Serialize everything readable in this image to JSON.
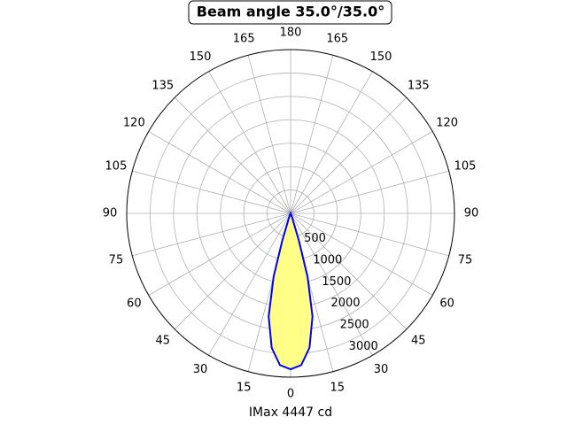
{
  "chart_data": {
    "type": "polar",
    "title": "Beam angle 35.0°/35.0°",
    "xlabel": "IMax 4447 cd",
    "series": [
      {
        "color": "#0000ee",
        "fill": "#ffff88",
        "theta": [
          -30,
          -20,
          -17,
          -15,
          -12,
          -8,
          -4,
          0,
          4,
          8,
          12,
          15,
          17,
          20,
          30
        ],
        "values": [
          0,
          100,
          600,
          1400,
          2250,
          2900,
          3250,
          3330,
          3250,
          2900,
          2250,
          1400,
          600,
          100,
          0
        ]
      }
    ],
    "rlim": [
      0,
      3500
    ],
    "rticks": [
      500,
      1000,
      1500,
      2000,
      2500,
      3000
    ],
    "thetaticks": [
      0,
      15,
      30,
      45,
      60,
      75,
      90,
      105,
      120,
      135,
      150,
      165,
      180,
      {
        "value": 195,
        "label": "165"
      },
      {
        "value": 210,
        "label": "150"
      },
      {
        "value": 225,
        "label": "135"
      },
      {
        "value": 240,
        "label": "120"
      },
      {
        "value": 255,
        "label": "105"
      },
      {
        "value": 270,
        "label": "90"
      },
      {
        "value": 285,
        "label": "75"
      },
      {
        "value": 300,
        "label": "60"
      },
      {
        "value": 315,
        "label": "45"
      },
      {
        "value": 330,
        "label": "30"
      },
      {
        "value": 345,
        "label": "15"
      }
    ],
    "grid": true
  }
}
